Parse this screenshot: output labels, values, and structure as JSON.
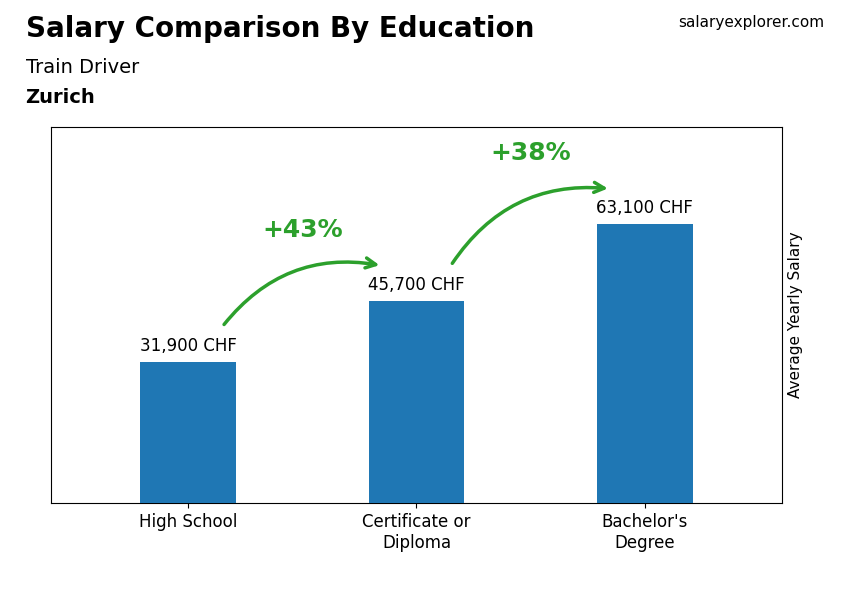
{
  "chart_data": {
    "type": "bar",
    "title": "Salary Comparison By Education",
    "subtitle": [
      "Train Driver",
      "Zurich"
    ],
    "source": "salaryexplorer.com",
    "categories": [
      "High School",
      "Certificate or\nDiploma",
      "Bachelor's\nDegree"
    ],
    "values": [
      31900,
      45700,
      63100
    ],
    "value_labels": [
      "31,900 CHF",
      "45,700 CHF",
      "63,100 CHF"
    ],
    "data_labels": true,
    "ylabel": "Average Yearly Salary",
    "ylim": [
      0,
      85000
    ],
    "yticks": [],
    "tick_labels": "x",
    "change_labels": [
      "+43%",
      "+38%"
    ],
    "change_color": "#2ca02c"
  }
}
